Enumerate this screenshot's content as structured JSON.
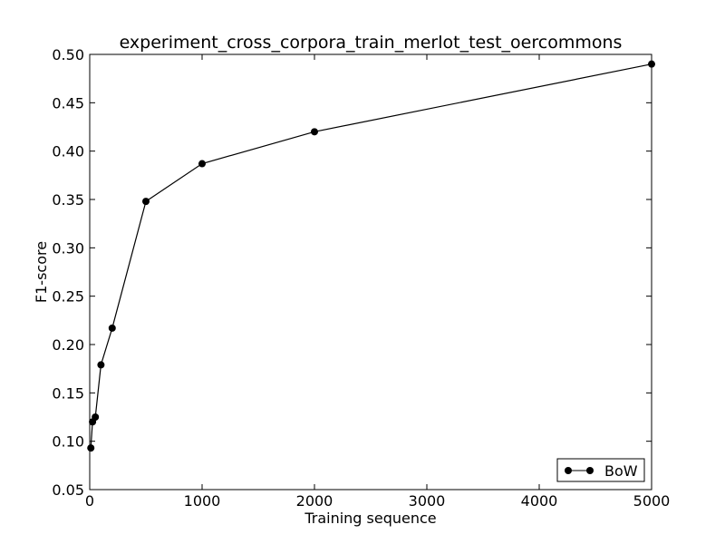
{
  "chart_data": {
    "type": "line",
    "title": "experiment_cross_corpora_train_merlot_test_oercommons",
    "xlabel": "Training sequence",
    "ylabel": "F1-score",
    "xlim": [
      0,
      5000
    ],
    "ylim": [
      0.05,
      0.5
    ],
    "xticks": [
      0,
      1000,
      2000,
      3000,
      4000,
      5000
    ],
    "xtick_labels": [
      "0",
      "1000",
      "2000",
      "3000",
      "4000",
      "5000"
    ],
    "yticks": [
      0.05,
      0.1,
      0.15,
      0.2,
      0.25,
      0.3,
      0.35,
      0.4,
      0.45,
      0.5
    ],
    "ytick_labels": [
      "0.05",
      "0.10",
      "0.15",
      "0.20",
      "0.25",
      "0.30",
      "0.35",
      "0.40",
      "0.45",
      "0.50"
    ],
    "grid": false,
    "legend_position": "bottom-right",
    "series": [
      {
        "name": "BoW",
        "color": "#000000",
        "marker": "circle",
        "x": [
          10,
          25,
          50,
          100,
          200,
          500,
          1000,
          2000,
          5000
        ],
        "y": [
          0.093,
          0.12,
          0.125,
          0.179,
          0.217,
          0.348,
          0.387,
          0.42,
          0.49
        ]
      }
    ]
  }
}
